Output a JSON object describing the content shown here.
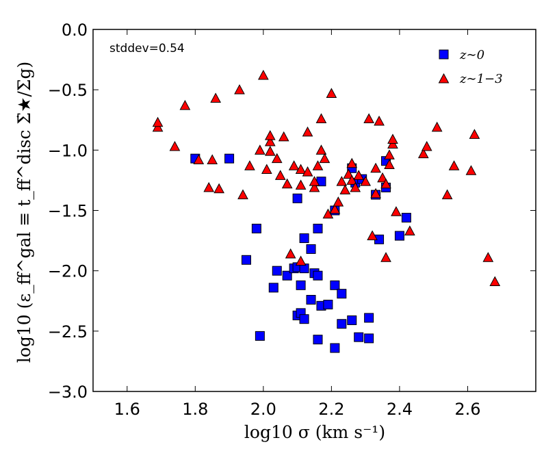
{
  "chart_data": {
    "type": "scatter",
    "title": "",
    "xlabel": "log10 σ (km s⁻¹)",
    "ylabel": "log10 (ε_ff^gal ≡ t_ff^disc Σ̇★/Σg)",
    "xlim": [
      1.5,
      2.8
    ],
    "ylim": [
      -3.0,
      0.0
    ],
    "xticks": [
      "1.6",
      "1.8",
      "2.0",
      "2.2",
      "2.4",
      "2.6"
    ],
    "yticks": [
      "0.0",
      "−0.5",
      "−1.0",
      "−1.5",
      "−2.0",
      "−2.5",
      "−3.0"
    ],
    "annotation": "stddev=0.54",
    "legend_position": "top-right",
    "series": [
      {
        "name": "z∼0",
        "marker": "square",
        "color": "#0000ff",
        "points": [
          [
            1.8,
            -1.07
          ],
          [
            1.9,
            -1.07
          ],
          [
            1.95,
            -1.91
          ],
          [
            1.98,
            -1.65
          ],
          [
            1.99,
            -2.54
          ],
          [
            2.03,
            -2.14
          ],
          [
            2.04,
            -2.0
          ],
          [
            2.07,
            -2.04
          ],
          [
            2.09,
            -1.98
          ],
          [
            2.1,
            -1.4
          ],
          [
            2.1,
            -2.37
          ],
          [
            2.1,
            -1.97
          ],
          [
            2.11,
            -2.35
          ],
          [
            2.11,
            -2.12
          ],
          [
            2.12,
            -1.98
          ],
          [
            2.12,
            -2.4
          ],
          [
            2.12,
            -1.73
          ],
          [
            2.14,
            -2.24
          ],
          [
            2.14,
            -1.82
          ],
          [
            2.15,
            -2.02
          ],
          [
            2.16,
            -2.04
          ],
          [
            2.16,
            -1.65
          ],
          [
            2.16,
            -2.57
          ],
          [
            2.17,
            -1.26
          ],
          [
            2.17,
            -2.29
          ],
          [
            2.19,
            -2.28
          ],
          [
            2.21,
            -2.12
          ],
          [
            2.21,
            -2.64
          ],
          [
            2.21,
            -1.5
          ],
          [
            2.23,
            -2.19
          ],
          [
            2.23,
            -2.44
          ],
          [
            2.26,
            -1.15
          ],
          [
            2.26,
            -2.41
          ],
          [
            2.27,
            -1.27
          ],
          [
            2.28,
            -2.55
          ],
          [
            2.29,
            -1.24
          ],
          [
            2.31,
            -2.39
          ],
          [
            2.31,
            -2.56
          ],
          [
            2.33,
            -1.37
          ],
          [
            2.34,
            -1.74
          ],
          [
            2.36,
            -1.09
          ],
          [
            2.36,
            -1.31
          ],
          [
            2.4,
            -1.71
          ],
          [
            2.42,
            -1.56
          ]
        ]
      },
      {
        "name": "z∼1−3",
        "marker": "triangle",
        "color": "#ff0000",
        "points": [
          [
            1.69,
            -0.81
          ],
          [
            1.69,
            -0.77
          ],
          [
            1.74,
            -0.97
          ],
          [
            1.77,
            -0.63
          ],
          [
            1.81,
            -1.08
          ],
          [
            1.84,
            -1.31
          ],
          [
            1.85,
            -1.08
          ],
          [
            1.86,
            -0.57
          ],
          [
            1.87,
            -1.32
          ],
          [
            1.93,
            -0.5
          ],
          [
            1.94,
            -1.37
          ],
          [
            1.96,
            -1.13
          ],
          [
            1.99,
            -1.0
          ],
          [
            2.0,
            -0.38
          ],
          [
            2.01,
            -1.16
          ],
          [
            2.02,
            -0.93
          ],
          [
            2.02,
            -0.88
          ],
          [
            2.02,
            -1.01
          ],
          [
            2.04,
            -1.07
          ],
          [
            2.05,
            -1.21
          ],
          [
            2.06,
            -0.89
          ],
          [
            2.07,
            -1.28
          ],
          [
            2.08,
            -1.86
          ],
          [
            2.09,
            -1.13
          ],
          [
            2.11,
            -1.29
          ],
          [
            2.11,
            -1.92
          ],
          [
            2.11,
            -1.16
          ],
          [
            2.13,
            -1.18
          ],
          [
            2.13,
            -0.85
          ],
          [
            2.15,
            -1.31
          ],
          [
            2.15,
            -1.26
          ],
          [
            2.16,
            -1.13
          ],
          [
            2.17,
            -0.74
          ],
          [
            2.17,
            -1.0
          ],
          [
            2.18,
            -1.07
          ],
          [
            2.19,
            -1.53
          ],
          [
            2.2,
            -0.53
          ],
          [
            2.21,
            -1.49
          ],
          [
            2.22,
            -1.43
          ],
          [
            2.23,
            -1.26
          ],
          [
            2.24,
            -1.33
          ],
          [
            2.25,
            -1.2
          ],
          [
            2.26,
            -1.11
          ],
          [
            2.26,
            -1.25
          ],
          [
            2.27,
            -1.31
          ],
          [
            2.28,
            -1.21
          ],
          [
            2.3,
            -1.26
          ],
          [
            2.31,
            -0.74
          ],
          [
            2.32,
            -1.71
          ],
          [
            2.33,
            -1.15
          ],
          [
            2.33,
            -1.36
          ],
          [
            2.34,
            -0.76
          ],
          [
            2.35,
            -1.23
          ],
          [
            2.36,
            -1.28
          ],
          [
            2.36,
            -1.89
          ],
          [
            2.37,
            -1.04
          ],
          [
            2.37,
            -1.12
          ],
          [
            2.38,
            -0.95
          ],
          [
            2.38,
            -0.91
          ],
          [
            2.39,
            -1.51
          ],
          [
            2.43,
            -1.67
          ],
          [
            2.47,
            -1.03
          ],
          [
            2.48,
            -0.97
          ],
          [
            2.51,
            -0.81
          ],
          [
            2.54,
            -1.37
          ],
          [
            2.56,
            -1.13
          ],
          [
            2.61,
            -1.17
          ],
          [
            2.62,
            -0.87
          ],
          [
            2.66,
            -1.89
          ],
          [
            2.68,
            -2.09
          ]
        ]
      }
    ]
  }
}
